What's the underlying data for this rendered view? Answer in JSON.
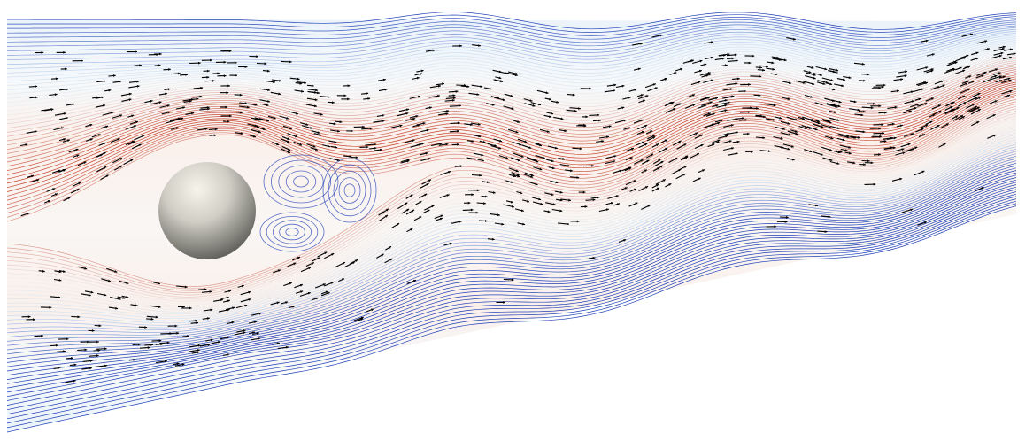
{
  "figure": {
    "background": "#ffffff",
    "colors": {
      "slow": "#1f3fb5",
      "mid": "#cfe3f5",
      "neutral": "#f4efec",
      "fast": "#c43a22",
      "arrow": "#000000",
      "sphere_light": "#f4f1ea",
      "sphere_dark": "#5e5e58"
    },
    "obstacle": "sphere",
    "glyph": "arrow"
  }
}
